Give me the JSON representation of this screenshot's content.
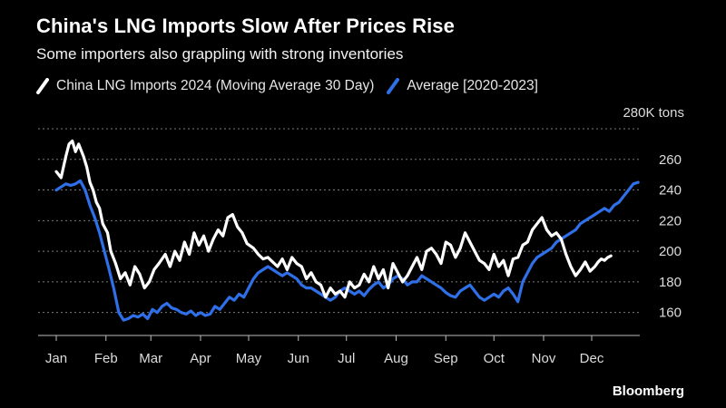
{
  "chart_data": {
    "type": "line",
    "title": "China's LNG Imports Slow After Prices Rise",
    "subtitle": "Some importers also grappling with strong inventories",
    "unit_label": "280K tons",
    "source": "Bloomberg",
    "ylim": [
      145,
      280
    ],
    "y_ticks": [
      160,
      180,
      200,
      220,
      240,
      260
    ],
    "x_ticks": [
      "Jan",
      "Feb",
      "Mar",
      "Apr",
      "May",
      "Jun",
      "Jul",
      "Aug",
      "Sep",
      "Oct",
      "Nov",
      "Dec"
    ],
    "x_range_days": [
      1,
      365
    ],
    "legend_position": "top-left",
    "series": [
      {
        "name": "China LNG Imports 2024 (Moving Average 30 Day)",
        "color": "#ffffff",
        "x": [
          1,
          4,
          7,
          9,
          11,
          13,
          15,
          18,
          20,
          22,
          24,
          26,
          28,
          30,
          33,
          35,
          38,
          41,
          44,
          47,
          50,
          53,
          56,
          59,
          62,
          65,
          69,
          72,
          75,
          78,
          81,
          84,
          87,
          90,
          93,
          96,
          99,
          102,
          105,
          108,
          111,
          114,
          117,
          120,
          124,
          127,
          130,
          133,
          136,
          139,
          142,
          145,
          148,
          151,
          154,
          157,
          160,
          163,
          166,
          169,
          172,
          175,
          178,
          181,
          184,
          187,
          190,
          193,
          196,
          199,
          202,
          205,
          208,
          211,
          214,
          217,
          220,
          223,
          226,
          229,
          232,
          235,
          238,
          241,
          244,
          247,
          250,
          253,
          256,
          259,
          262,
          265,
          268,
          271,
          274,
          277,
          280,
          283,
          286,
          289,
          292,
          295,
          298,
          301,
          304,
          307,
          310,
          313,
          316,
          319,
          322,
          325,
          328,
          331,
          334,
          337,
          339,
          341,
          343,
          345,
          347
        ],
        "values": [
          252,
          248,
          262,
          270,
          272,
          265,
          270,
          262,
          255,
          245,
          240,
          232,
          228,
          218,
          212,
          200,
          192,
          182,
          186,
          178,
          190,
          185,
          176,
          180,
          188,
          192,
          198,
          190,
          200,
          194,
          206,
          198,
          212,
          204,
          210,
          200,
          208,
          214,
          210,
          222,
          224,
          216,
          212,
          205,
          202,
          198,
          195,
          196,
          193,
          190,
          195,
          188,
          196,
          192,
          190,
          182,
          186,
          180,
          178,
          170,
          176,
          172,
          174,
          170,
          180,
          176,
          178,
          185,
          180,
          190,
          182,
          188,
          176,
          192,
          186,
          180,
          184,
          190,
          196,
          188,
          200,
          202,
          198,
          192,
          206,
          204,
          196,
          202,
          212,
          206,
          200,
          194,
          192,
          188,
          198,
          190,
          194,
          184,
          195,
          196,
          204,
          206,
          214,
          218,
          222,
          214,
          210,
          212,
          208,
          198,
          190,
          184,
          188,
          193,
          187,
          190,
          193,
          195,
          194,
          196,
          197
        ]
      },
      {
        "name": "Average [2020-2023]",
        "color": "#2f6fe8",
        "x": [
          1,
          4,
          7,
          10,
          13,
          16,
          19,
          22,
          25,
          28,
          31,
          34,
          37,
          40,
          43,
          46,
          49,
          52,
          55,
          58,
          61,
          64,
          67,
          70,
          73,
          76,
          79,
          82,
          85,
          88,
          91,
          94,
          97,
          100,
          103,
          106,
          109,
          112,
          115,
          118,
          121,
          124,
          127,
          130,
          133,
          136,
          139,
          142,
          145,
          148,
          151,
          154,
          157,
          160,
          163,
          166,
          169,
          172,
          175,
          178,
          181,
          184,
          187,
          190,
          193,
          196,
          199,
          202,
          205,
          208,
          211,
          214,
          217,
          220,
          223,
          226,
          229,
          232,
          235,
          238,
          241,
          244,
          247,
          250,
          253,
          256,
          259,
          262,
          265,
          268,
          271,
          274,
          277,
          280,
          283,
          286,
          289,
          292,
          295,
          298,
          301,
          304,
          307,
          310,
          313,
          316,
          319,
          322,
          325,
          328,
          331,
          334,
          337,
          340,
          343,
          346,
          349,
          352,
          355,
          358,
          361,
          364
        ],
        "values": [
          240,
          242,
          244,
          243,
          244,
          246,
          240,
          230,
          222,
          212,
          200,
          188,
          175,
          160,
          155,
          156,
          158,
          157,
          159,
          156,
          162,
          160,
          164,
          166,
          163,
          162,
          160,
          159,
          161,
          158,
          160,
          158,
          159,
          164,
          162,
          166,
          170,
          168,
          172,
          170,
          176,
          182,
          186,
          188,
          190,
          188,
          186,
          184,
          186,
          184,
          182,
          178,
          176,
          176,
          174,
          172,
          170,
          168,
          170,
          174,
          176,
          174,
          172,
          174,
          171,
          175,
          178,
          180,
          176,
          178,
          182,
          184,
          182,
          178,
          180,
          180,
          184,
          182,
          180,
          178,
          176,
          173,
          171,
          170,
          174,
          176,
          178,
          174,
          170,
          168,
          170,
          172,
          170,
          174,
          176,
          172,
          167,
          180,
          186,
          192,
          196,
          198,
          200,
          202,
          206,
          208,
          210,
          212,
          214,
          218,
          220,
          222,
          224,
          226,
          228,
          226,
          230,
          232,
          236,
          240,
          244,
          245
        ]
      }
    ]
  }
}
